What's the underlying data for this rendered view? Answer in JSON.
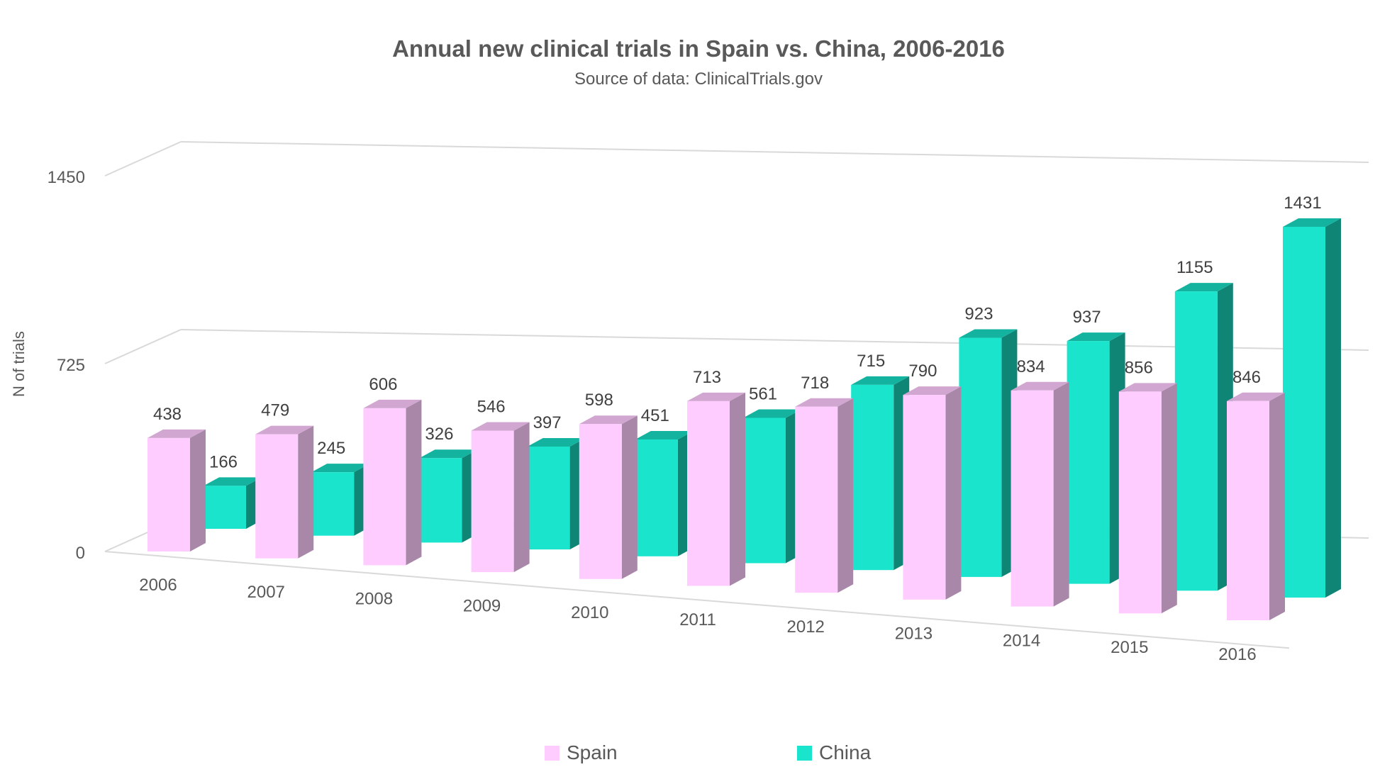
{
  "chart_data": {
    "type": "bar",
    "title": "Annual new clinical trials in Spain vs. China, 2006-2016",
    "subtitle": "Source of data: ClinicalTrials.gov",
    "xlabel": "",
    "ylabel": "N of trials",
    "categories": [
      "2006",
      "2007",
      "2008",
      "2009",
      "2010",
      "2011",
      "2012",
      "2013",
      "2014",
      "2015",
      "2016"
    ],
    "series": [
      {
        "name": "Spain",
        "color": "#FFCCFF",
        "values": [
          438,
          479,
          606,
          546,
          598,
          713,
          718,
          790,
          834,
          856,
          846
        ]
      },
      {
        "name": "China",
        "color": "#1AE5CC",
        "values": [
          166,
          245,
          326,
          397,
          451,
          561,
          715,
          923,
          937,
          1155,
          1431
        ]
      }
    ],
    "yticks": [
      0,
      725,
      1450
    ],
    "ylim": [
      0,
      1450
    ],
    "grid": true,
    "legend_position": "bottom",
    "style": "3d-clustered-column"
  }
}
